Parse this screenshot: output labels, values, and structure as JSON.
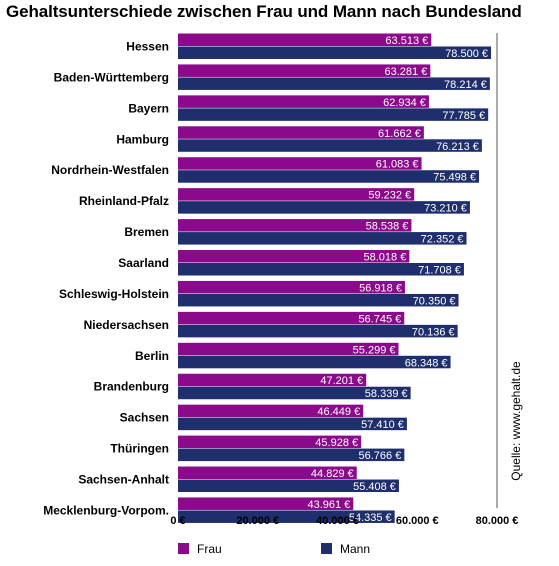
{
  "chart_data": {
    "type": "bar",
    "orientation": "horizontal",
    "title": "Gehaltsunterschiede zwischen Frau und Mann nach Bundesland",
    "categories": [
      "Hessen",
      "Baden-Württemberg",
      "Bayern",
      "Hamburg",
      "Nordrhein-Westfalen",
      "Rheinland-Pfalz",
      "Bremen",
      "Saarland",
      "Schleswig-Holstein",
      "Niedersachsen",
      "Berlin",
      "Brandenburg",
      "Sachsen",
      "Thüringen",
      "Sachsen-Anhalt",
      "Mecklenburg-Vorpom."
    ],
    "series": [
      {
        "name": "Frau",
        "color": "#8b0a8c",
        "values": [
          63513,
          63281,
          62934,
          61662,
          61083,
          59232,
          58538,
          58018,
          56918,
          56745,
          55299,
          47201,
          46449,
          45928,
          44829,
          43961
        ],
        "labels": [
          "63.513 €",
          "63.281 €",
          "62.934 €",
          "61.662 €",
          "61.083 €",
          "59.232 €",
          "58.538 €",
          "58.018 €",
          "56.918 €",
          "56.745 €",
          "55.299 €",
          "47.201 €",
          "46.449 €",
          "45.928 €",
          "44.829 €",
          "43.961 €"
        ]
      },
      {
        "name": "Mann",
        "color": "#1f2f6e",
        "values": [
          78500,
          78214,
          77785,
          76213,
          75498,
          73210,
          72352,
          71708,
          70350,
          70136,
          68348,
          58339,
          57410,
          56766,
          55408,
          54335
        ],
        "labels": [
          "78.500 €",
          "78.214 €",
          "77.785 €",
          "76.213 €",
          "75.498 €",
          "73.210 €",
          "72.352 €",
          "71.708 €",
          "70.350 €",
          "70.136 €",
          "68.348 €",
          "58.339 €",
          "57.410 €",
          "56.766 €",
          "55.408 €",
          "54.335 €"
        ]
      }
    ],
    "xlim": [
      0,
      80000
    ],
    "xticks": [
      0,
      20000,
      40000,
      60000,
      80000
    ],
    "xtick_labels": [
      "0 €",
      "20.000 €",
      "40.000 €",
      "60.000 €",
      "80.000 €"
    ],
    "grid": "vertical line at 80.000 €",
    "legend": "bottom",
    "source": "Quelle: www.gehalt.de"
  }
}
